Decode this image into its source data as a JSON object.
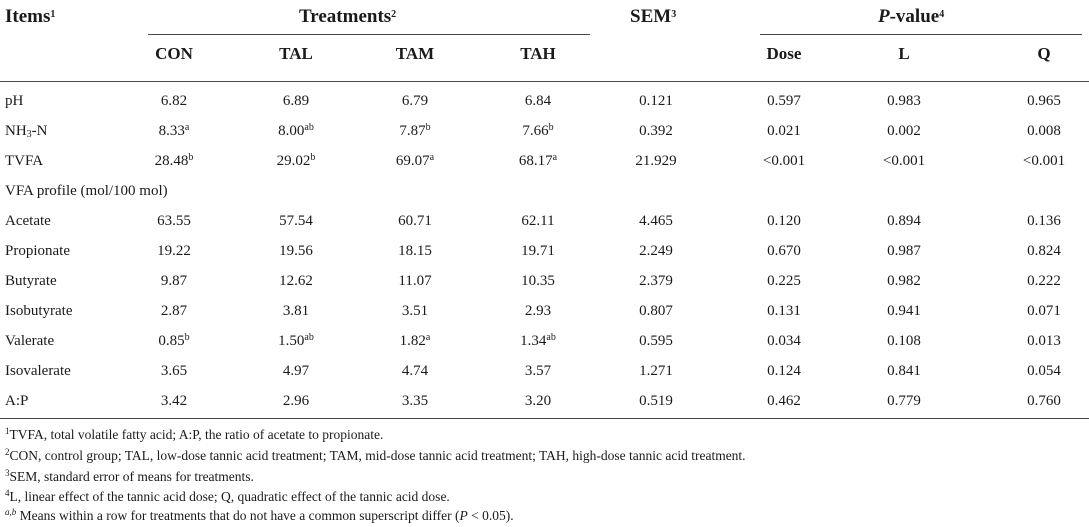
{
  "header": {
    "items": "Items",
    "items_sup": "1",
    "treatments": "Treatments",
    "treatments_sup": "2",
    "sem": "SEM",
    "sem_sup": "3",
    "pvalue_p": "P",
    "pvalue_rest": "-value",
    "pvalue_sup": "4",
    "sub": {
      "con": "CON",
      "tal": "TAL",
      "tam": "TAM",
      "tah": "TAH",
      "dose": "Dose",
      "l": "L",
      "q": "Q"
    }
  },
  "rows": {
    "ph": {
      "label": "pH",
      "con": "6.82",
      "tal": "6.89",
      "tam": "6.79",
      "tah": "6.84",
      "sem": "0.121",
      "dose": "0.597",
      "l": "0.983",
      "q": "0.965"
    },
    "nh3": {
      "label_pre": "NH",
      "label_sub": "3",
      "label_post": "-N",
      "con": "8.33",
      "con_sup": "a",
      "tal": "8.00",
      "tal_sup": "ab",
      "tam": "7.87",
      "tam_sup": "b",
      "tah": "7.66",
      "tah_sup": "b",
      "sem": "0.392",
      "dose": "0.021",
      "l": "0.002",
      "q": "0.008"
    },
    "tvfa": {
      "label": "TVFA",
      "con": "28.48",
      "con_sup": "b",
      "tal": "29.02",
      "tal_sup": "b",
      "tam": "69.07",
      "tam_sup": "a",
      "tah": "68.17",
      "tah_sup": "a",
      "sem": "21.929",
      "dose": "<0.001",
      "l": "<0.001",
      "q": "<0.001"
    },
    "vfa_profile": {
      "label": "VFA profile (mol/100 mol)"
    },
    "acetate": {
      "label": "Acetate",
      "con": "63.55",
      "tal": "57.54",
      "tam": "60.71",
      "tah": "62.11",
      "sem": "4.465",
      "dose": "0.120",
      "l": "0.894",
      "q": "0.136"
    },
    "propionate": {
      "label": "Propionate",
      "con": "19.22",
      "tal": "19.56",
      "tam": "18.15",
      "tah": "19.71",
      "sem": "2.249",
      "dose": "0.670",
      "l": "0.987",
      "q": "0.824"
    },
    "butyrate": {
      "label": "Butyrate",
      "con": "9.87",
      "tal": "12.62",
      "tam": "11.07",
      "tah": "10.35",
      "sem": "2.379",
      "dose": "0.225",
      "l": "0.982",
      "q": "0.222"
    },
    "isobutyrate": {
      "label": "Isobutyrate",
      "con": "2.87",
      "tal": "3.81",
      "tam": "3.51",
      "tah": "2.93",
      "sem": "0.807",
      "dose": "0.131",
      "l": "0.941",
      "q": "0.071"
    },
    "valerate": {
      "label": "Valerate",
      "con": "0.85",
      "con_sup": "b",
      "tal": "1.50",
      "tal_sup": "ab",
      "tam": "1.82",
      "tam_sup": "a",
      "tah": "1.34",
      "tah_sup": "ab",
      "sem": "0.595",
      "dose": "0.034",
      "l": "0.108",
      "q": "0.013"
    },
    "isovalerate": {
      "label": "Isovalerate",
      "con": "3.65",
      "tal": "4.97",
      "tam": "4.74",
      "tah": "3.57",
      "sem": "1.271",
      "dose": "0.124",
      "l": "0.841",
      "q": "0.054"
    },
    "ap": {
      "label": "A:P",
      "con": "3.42",
      "tal": "2.96",
      "tam": "3.35",
      "tah": "3.20",
      "sem": "0.519",
      "dose": "0.462",
      "l": "0.779",
      "q": "0.760"
    }
  },
  "footnotes": {
    "f1_mark": "1",
    "f1": "TVFA, total volatile fatty acid; A:P, the ratio of acetate to propionate.",
    "f2_mark": "2",
    "f2": "CON, control group; TAL, low-dose tannic acid treatment; TAM, mid-dose tannic acid treatment; TAH, high-dose tannic acid treatment.",
    "f3_mark": "3",
    "f3": "SEM, standard error of means for treatments.",
    "f4_mark": "4",
    "f4": "L, linear effect of the tannic acid dose; Q, quadratic effect of the tannic acid dose.",
    "f5_mark": "a,b",
    "f5_pre": " Means within a row for treatments that do not have a common superscript differ (",
    "f5_p": "P",
    "f5_post": " < 0.05)."
  }
}
